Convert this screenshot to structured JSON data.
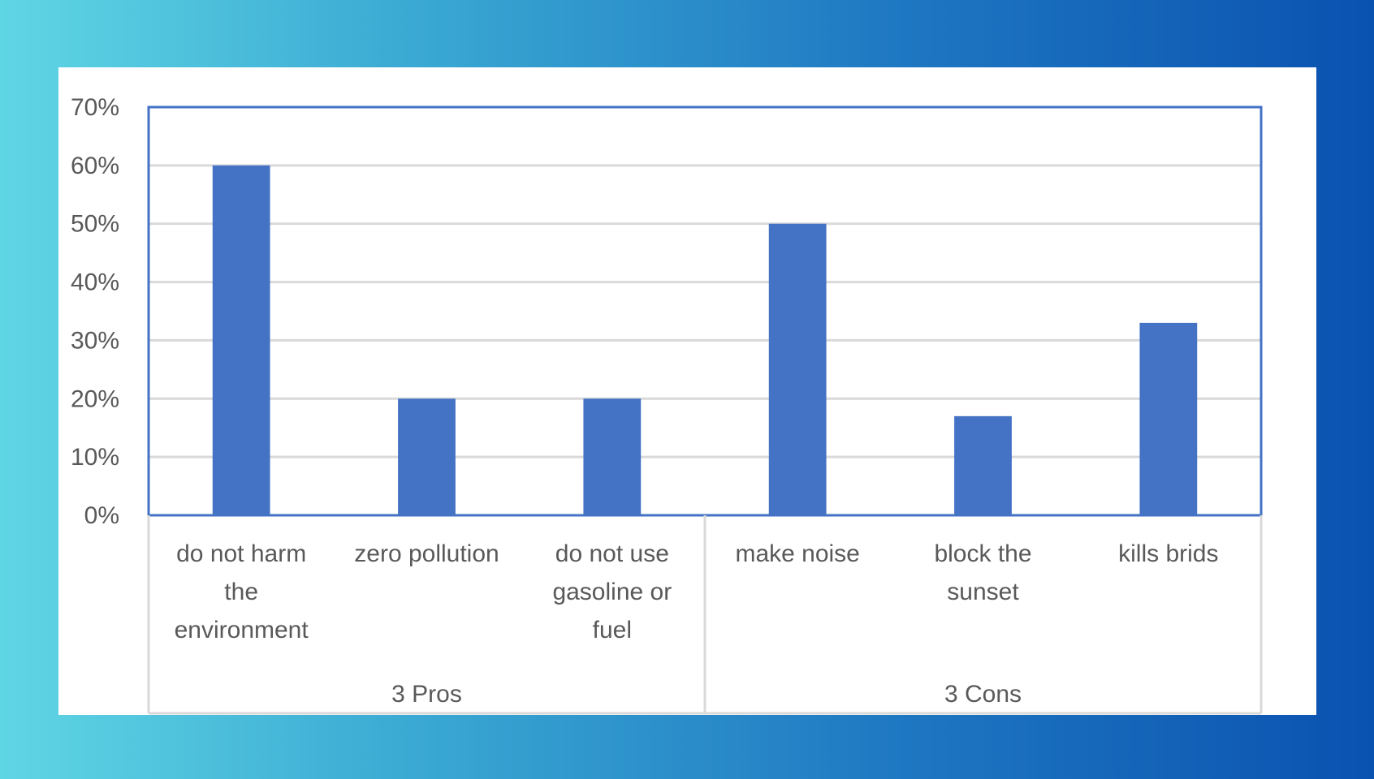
{
  "chart_data": {
    "type": "bar",
    "categories": [
      [
        "do not harm",
        "the",
        "environment"
      ],
      [
        "zero pollution"
      ],
      [
        "do not use",
        "gasoline or",
        "fuel"
      ],
      [
        "make noise"
      ],
      [
        "block the",
        "sunset"
      ],
      [
        "kills brids"
      ]
    ],
    "groups": [
      {
        "label": "3 Pros",
        "count": 3
      },
      {
        "label": "3 Cons",
        "count": 3
      }
    ],
    "values": [
      0.6,
      0.2,
      0.2,
      0.5,
      0.17,
      0.33
    ],
    "ylim": [
      0,
      0.7
    ],
    "yticks": [
      "0%",
      "10%",
      "20%",
      "30%",
      "40%",
      "50%",
      "60%",
      "70%"
    ],
    "grid": true,
    "colors": {
      "bar": "#4472c4",
      "grid": "#d9d9d9",
      "frame": "#4472c4",
      "axis_text": "#595959"
    }
  }
}
